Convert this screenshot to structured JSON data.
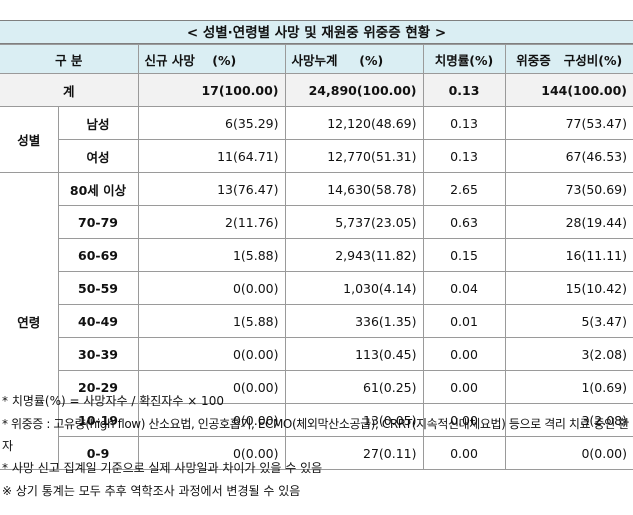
{
  "title": "< 성별·연령별 사망 및 재원중 위중증 현황 >",
  "headers": {
    "category": "구 분",
    "new_deaths": "신규 사망    (%)",
    "cum_deaths": "사망누계     (%)",
    "fatality": "치명률(%)",
    "severe": "위중증   구성비(%)"
  },
  "total": {
    "label": "계",
    "new_deaths": "17(100.00)",
    "cum_deaths": "24,890(100.00)",
    "fatality": "0.13",
    "severe": "144(100.00)"
  },
  "groups": [
    {
      "label": "성별",
      "rows": [
        {
          "sub": "남성",
          "new_deaths": "6(35.29)",
          "cum_deaths": "12,120(48.69)",
          "fatality": "0.13",
          "severe": "77(53.47)"
        },
        {
          "sub": "여성",
          "new_deaths": "11(64.71)",
          "cum_deaths": "12,770(51.31)",
          "fatality": "0.13",
          "severe": "67(46.53)"
        }
      ]
    },
    {
      "label": "연령",
      "rows": [
        {
          "sub": "80세 이상",
          "new_deaths": "13(76.47)",
          "cum_deaths": "14,630(58.78)",
          "fatality": "2.65",
          "severe": "73(50.69)"
        },
        {
          "sub": "70-79",
          "new_deaths": "2(11.76)",
          "cum_deaths": "5,737(23.05)",
          "fatality": "0.63",
          "severe": "28(19.44)"
        },
        {
          "sub": "60-69",
          "new_deaths": "1(5.88)",
          "cum_deaths": "2,943(11.82)",
          "fatality": "0.15",
          "severe": "16(11.11)"
        },
        {
          "sub": "50-59",
          "new_deaths": "0(0.00)",
          "cum_deaths": "1,030(4.14)",
          "fatality": "0.04",
          "severe": "15(10.42)"
        },
        {
          "sub": "40-49",
          "new_deaths": "1(5.88)",
          "cum_deaths": "336(1.35)",
          "fatality": "0.01",
          "severe": "5(3.47)"
        },
        {
          "sub": "30-39",
          "new_deaths": "0(0.00)",
          "cum_deaths": "113(0.45)",
          "fatality": "0.00",
          "severe": "3(2.08)"
        },
        {
          "sub": "20-29",
          "new_deaths": "0(0.00)",
          "cum_deaths": "61(0.25)",
          "fatality": "0.00",
          "severe": "1(0.69)"
        },
        {
          "sub": "10-19",
          "new_deaths": "0(0.00)",
          "cum_deaths": "13(0.05)",
          "fatality": "0.00",
          "severe": "3(2.08)"
        },
        {
          "sub": "0-9",
          "new_deaths": "0(0.00)",
          "cum_deaths": "27(0.11)",
          "fatality": "0.00",
          "severe": "0(0.00)"
        }
      ]
    }
  ],
  "notes": [
    "* 치명률(%) = 사망자수 / 확진자수 × 100",
    "* 위중증 : 고유량(high flow) 산소요법, 인공호흡기, ECMO(체외막산소공급), CRRT(지속적신대체요법) 등으로 격리 치료 중인 환자",
    "* 사망 신고 집계일 기준으로 실제 사망일과 차이가 있을 수 있음",
    "※ 상기 통계는 모두 추후 역학조사 과정에서 변경될 수 있음"
  ]
}
